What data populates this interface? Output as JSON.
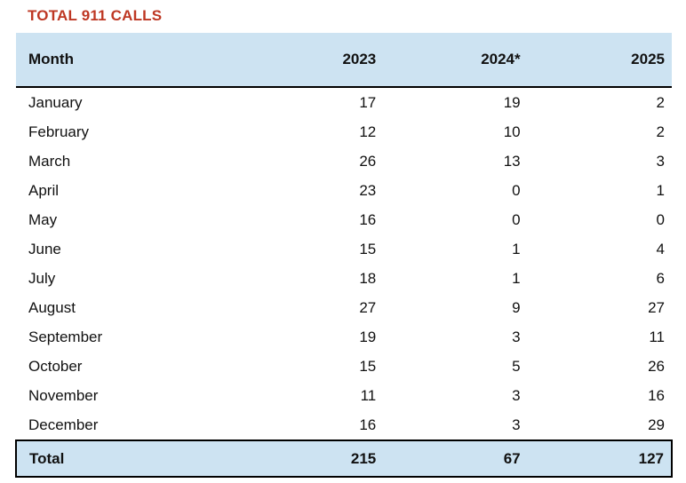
{
  "title": "TOTAL 911 CALLS",
  "colors": {
    "title_red": "#be3723",
    "header_fill": "#cde3f2",
    "total_fill": "#cde3f2",
    "border_black": "#000000",
    "text": "#111111"
  },
  "table": {
    "columns": [
      "Month",
      "2023",
      "2024*",
      "2025"
    ],
    "rows": [
      {
        "month": "January",
        "values": [
          17,
          19,
          2
        ]
      },
      {
        "month": "February",
        "values": [
          12,
          10,
          2
        ]
      },
      {
        "month": "March",
        "values": [
          26,
          13,
          3
        ]
      },
      {
        "month": "April",
        "values": [
          23,
          0,
          1
        ]
      },
      {
        "month": "May",
        "values": [
          16,
          0,
          0
        ]
      },
      {
        "month": "June",
        "values": [
          15,
          1,
          4
        ]
      },
      {
        "month": "July",
        "values": [
          18,
          1,
          6
        ]
      },
      {
        "month": "August",
        "values": [
          27,
          9,
          27
        ]
      },
      {
        "month": "September",
        "values": [
          19,
          3,
          11
        ]
      },
      {
        "month": "October",
        "values": [
          15,
          5,
          26
        ]
      },
      {
        "month": "November",
        "values": [
          11,
          3,
          16
        ]
      },
      {
        "month": "December",
        "values": [
          16,
          3,
          29
        ]
      }
    ],
    "total": {
      "label": "Total",
      "values": [
        215,
        67,
        127
      ]
    }
  },
  "chart_data": {
    "type": "table",
    "title": "TOTAL 911 CALLS",
    "categories": [
      "January",
      "February",
      "March",
      "April",
      "May",
      "June",
      "July",
      "August",
      "September",
      "October",
      "November",
      "December"
    ],
    "series": [
      {
        "name": "2023",
        "values": [
          17,
          12,
          26,
          23,
          16,
          15,
          18,
          27,
          19,
          15,
          11,
          16
        ]
      },
      {
        "name": "2024*",
        "values": [
          19,
          10,
          13,
          0,
          0,
          1,
          1,
          9,
          3,
          5,
          3,
          3
        ]
      },
      {
        "name": "2025",
        "values": [
          2,
          2,
          3,
          1,
          0,
          4,
          6,
          27,
          11,
          26,
          16,
          29
        ]
      }
    ],
    "totals": {
      "2023": 215,
      "2024*": 67,
      "2025": 127
    }
  }
}
